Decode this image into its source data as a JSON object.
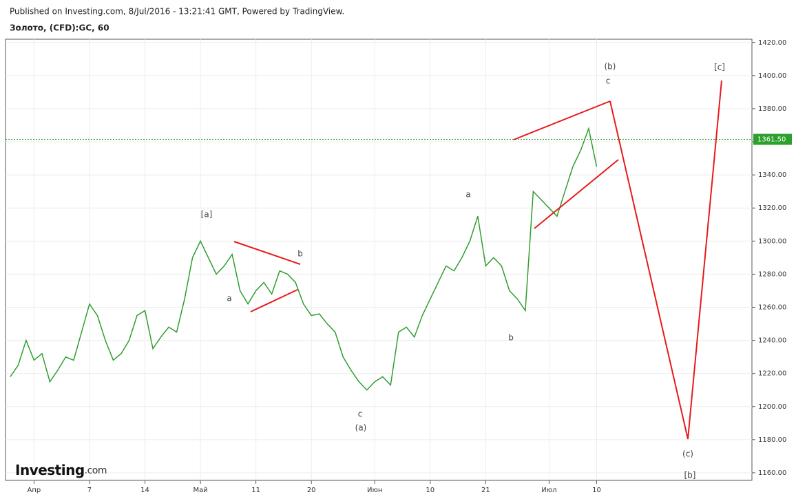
{
  "header": {
    "published": "Published on Investing.com, 8/Jul/2016 - 13:21:41 GMT, Powered by TradingView.",
    "symbol": "Золото, (CFD):GC, 60"
  },
  "logo": {
    "brand": "Investing",
    "suffix": ".com"
  },
  "chart_data": {
    "type": "line",
    "color": "#2e9e2e",
    "grid": true,
    "x": [
      -3,
      -2,
      -1,
      0,
      1,
      2,
      3,
      4,
      5,
      6,
      7,
      8,
      9,
      10,
      11,
      12,
      13,
      14,
      15,
      16,
      17,
      18,
      19,
      20,
      21,
      22,
      23,
      24,
      25,
      26,
      27,
      28,
      29,
      30,
      31,
      32,
      33,
      34,
      35,
      36,
      37,
      38,
      39,
      40,
      41,
      42,
      43,
      44,
      45,
      46,
      47,
      48,
      49,
      50,
      51,
      52,
      53,
      54,
      55,
      56,
      57,
      58,
      59,
      60,
      61,
      62,
      63,
      64,
      65,
      66,
      67,
      68,
      69,
      70,
      71
    ],
    "values": [
      1218,
      1225,
      1240,
      1228,
      1232,
      1215,
      1222,
      1230,
      1228,
      1245,
      1262,
      1255,
      1240,
      1228,
      1232,
      1240,
      1255,
      1258,
      1235,
      1242,
      1248,
      1245,
      1265,
      1290,
      1300,
      1290,
      1280,
      1285,
      1292,
      1270,
      1262,
      1270,
      1275,
      1268,
      1282,
      1280,
      1275,
      1262,
      1255,
      1256,
      1250,
      1245,
      1230,
      1222,
      1215,
      1210,
      1215,
      1218,
      1213,
      1245,
      1248,
      1242,
      1255,
      1265,
      1275,
      1285,
      1282,
      1290,
      1300,
      1315,
      1285,
      1290,
      1285,
      1270,
      1265,
      1258,
      1330,
      1325,
      1320,
      1315,
      1330,
      1345,
      1355,
      1368,
      1345
    ],
    "xlim": [
      -3.6,
      90.6
    ],
    "xticks": [
      {
        "value": 0,
        "label": "Апр"
      },
      7,
      14,
      {
        "value": 21,
        "label": "Май"
      },
      {
        "value": 28,
        "label": "11"
      },
      {
        "value": 35,
        "label": "20"
      },
      {
        "value": 43,
        "label": "Июн"
      },
      {
        "value": 50,
        "label": "10"
      },
      {
        "value": 57,
        "label": "21"
      },
      {
        "value": 65,
        "label": "Июл"
      },
      {
        "value": 71,
        "label": "10"
      }
    ],
    "ylim": [
      1155.4,
      1422
    ],
    "yticks": [
      {
        "value": 1160,
        "label": "1160.00"
      },
      {
        "value": 1180,
        "label": "1180.00"
      },
      {
        "value": 1200,
        "label": "1200.00"
      },
      {
        "value": 1220,
        "label": "1220.00"
      },
      {
        "value": 1240,
        "label": "1240.00"
      },
      {
        "value": 1260,
        "label": "1260.00"
      },
      {
        "value": 1280,
        "label": "1280.00"
      },
      {
        "value": 1300,
        "label": "1300.00"
      },
      {
        "value": 1320,
        "label": "1320.00"
      },
      {
        "value": 1340,
        "label": "1340.00"
      },
      {
        "value": 1360,
        "label": "1360.00"
      },
      {
        "value": 1380,
        "label": "1380.00"
      },
      {
        "value": 1400,
        "label": "1400.00"
      },
      {
        "value": 1420,
        "label": "1420.00"
      }
    ],
    "current_price": {
      "value": 1361.5,
      "label": "1361.50"
    },
    "annotations": [
      "[a]",
      "a",
      "b",
      "c",
      "(a)",
      "a",
      "b",
      "(b)",
      "c",
      "[c]",
      "(c)",
      "[b]"
    ]
  }
}
